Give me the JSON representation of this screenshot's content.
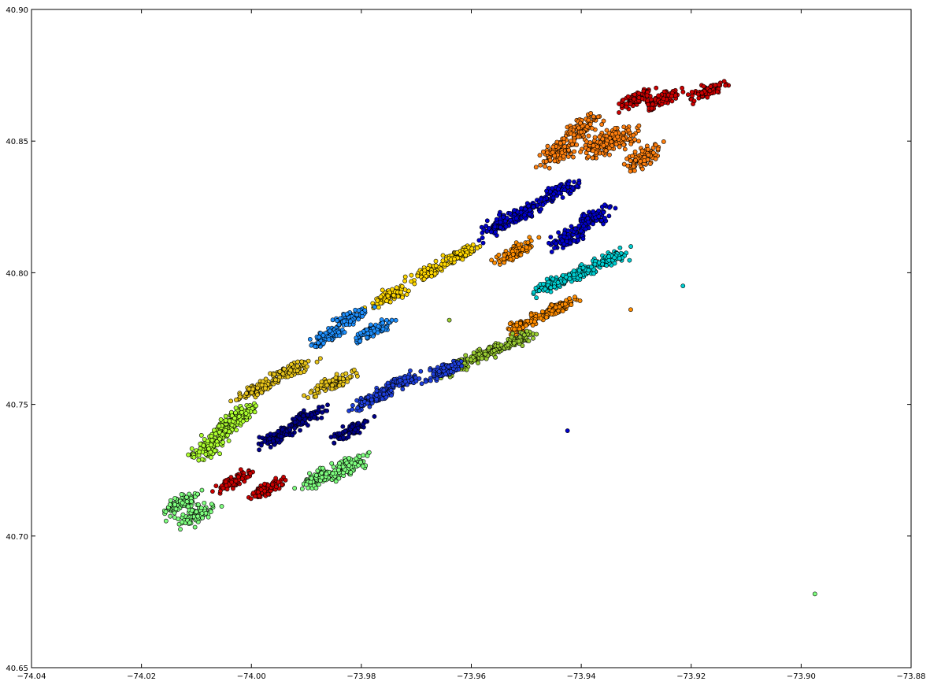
{
  "chart_data": {
    "type": "scatter",
    "title": "",
    "xlabel": "",
    "ylabel": "",
    "xlim": [
      -74.04,
      -73.88
    ],
    "ylim": [
      40.65,
      40.9
    ],
    "grid": false,
    "x_ticks": [
      "−74.04",
      "−74.02",
      "−74.00",
      "−73.98",
      "−73.96",
      "−73.94",
      "−73.92",
      "−73.90",
      "−73.88"
    ],
    "x_tick_values": [
      -74.04,
      -74.02,
      -74.0,
      -73.98,
      -73.96,
      -73.94,
      -73.92,
      -73.9,
      -73.88
    ],
    "y_ticks": [
      "40.65",
      "40.70",
      "40.75",
      "40.80",
      "40.85",
      "40.90"
    ],
    "y_tick_values": [
      40.65,
      40.7,
      40.75,
      40.8,
      40.85,
      40.9
    ],
    "series": [
      {
        "color": "#ff7f0e",
        "points": [
          [
            -73.937,
            40.848
          ],
          [
            -73.944,
            40.846
          ],
          [
            -73.933,
            40.851
          ],
          [
            -73.929,
            40.843
          ],
          [
            -73.94,
            40.855
          ]
        ],
        "spread": [
          0.004,
          0.005
        ]
      },
      {
        "color": "#0000cc",
        "points": [
          [
            -73.944,
            40.831
          ],
          [
            -73.95,
            40.823
          ],
          [
            -73.938,
            40.821
          ],
          [
            -73.955,
            40.818
          ],
          [
            -73.942,
            40.814
          ]
        ],
        "spread": [
          0.004,
          0.004
        ]
      },
      {
        "color": "#ffd700",
        "points": [
          [
            -73.968,
            40.8
          ],
          [
            -73.975,
            40.791
          ],
          [
            -73.962,
            40.807
          ]
        ],
        "spread": [
          0.004,
          0.003
        ]
      },
      {
        "color": "#1e90ff",
        "points": [
          [
            -73.982,
            40.783
          ],
          [
            -73.978,
            40.778
          ],
          [
            -73.986,
            40.776
          ]
        ],
        "spread": [
          0.004,
          0.003
        ]
      },
      {
        "color": "#00ced1",
        "points": [
          [
            -73.94,
            40.8
          ],
          [
            -73.935,
            40.805
          ],
          [
            -73.945,
            40.796
          ]
        ],
        "spread": [
          0.004,
          0.003
        ]
      },
      {
        "color": "#ff8c00",
        "points": [
          [
            -73.952,
            40.808
          ],
          [
            -73.944,
            40.787
          ],
          [
            -73.95,
            40.781
          ]
        ],
        "spread": [
          0.004,
          0.003
        ]
      },
      {
        "color": "#9acd32",
        "points": [
          [
            -73.957,
            40.77
          ],
          [
            -73.962,
            40.765
          ],
          [
            -73.952,
            40.774
          ]
        ],
        "spread": [
          0.004,
          0.003
        ]
      },
      {
        "color": "#1e3fdd",
        "points": [
          [
            -73.973,
            40.758
          ],
          [
            -73.965,
            40.763
          ],
          [
            -73.978,
            40.752
          ]
        ],
        "spread": [
          0.004,
          0.003
        ]
      },
      {
        "color": "#e8c51a",
        "points": [
          [
            -73.993,
            40.763
          ],
          [
            -73.985,
            40.758
          ],
          [
            -73.999,
            40.756
          ]
        ],
        "spread": [
          0.005,
          0.003
        ]
      },
      {
        "color": "#00008b",
        "points": [
          [
            -73.99,
            40.745
          ],
          [
            -73.982,
            40.74
          ],
          [
            -73.995,
            40.738
          ]
        ],
        "spread": [
          0.004,
          0.003
        ]
      },
      {
        "color": "#adff2f",
        "points": [
          [
            -74.005,
            40.74
          ],
          [
            -74.008,
            40.733
          ],
          [
            -74.002,
            40.746
          ]
        ],
        "spread": [
          0.004,
          0.004
        ]
      },
      {
        "color": "#7fff7f",
        "points": [
          [
            -73.988,
            40.722
          ],
          [
            -73.982,
            40.727
          ],
          [
            -74.013,
            40.712
          ],
          [
            -74.01,
            40.708
          ]
        ],
        "spread": [
          0.004,
          0.004
        ]
      },
      {
        "color": "#cc0000",
        "points": [
          [
            -73.997,
            40.718
          ],
          [
            -74.003,
            40.721
          ],
          [
            -73.925,
            40.866
          ],
          [
            -73.917,
            40.869
          ],
          [
            -73.93,
            40.866
          ]
        ],
        "spread": [
          0.004,
          0.003
        ]
      }
    ],
    "outliers": [
      {
        "x": -73.9425,
        "y": 40.74,
        "color": "#0000cc"
      },
      {
        "x": -73.9215,
        "y": 40.795,
        "color": "#00ced1"
      },
      {
        "x": -73.8975,
        "y": 40.678,
        "color": "#7fff7f"
      },
      {
        "x": -73.931,
        "y": 40.786,
        "color": "#ff8c00"
      },
      {
        "x": -73.964,
        "y": 40.782,
        "color": "#9acd32"
      }
    ]
  }
}
